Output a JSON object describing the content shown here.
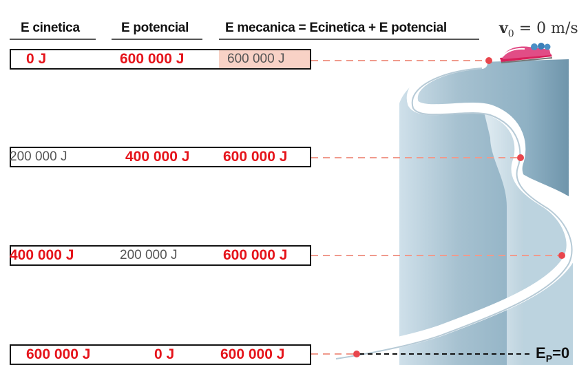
{
  "headers": {
    "kinetic": "E cinetica",
    "potential": "E potencial",
    "mechanical": "E mecanica = Ecinetica + E potencial"
  },
  "velocity": {
    "symbol": "v",
    "subscript": "0",
    "rest": " = 0 m/s"
  },
  "ground_label": {
    "main": "E",
    "subscript": "P",
    "rest": "=0"
  },
  "rows": [
    {
      "kinetic": "0 J",
      "potential": "600 000 J",
      "mechanical": "600 000 J"
    },
    {
      "kinetic": "200 000 J",
      "potential": "400 000 J",
      "mechanical": "600 000 J"
    },
    {
      "kinetic": "400 000 J",
      "potential": "200 000 J",
      "mechanical": "600 000 J"
    },
    {
      "kinetic": "600 000 J",
      "potential": "0 J",
      "mechanical": "600 000 J"
    }
  ],
  "colors": {
    "value_red": "#e5141b",
    "dashed_line": "#f09a8c",
    "marker": "#e8464d",
    "highlight": "#f8d2c6",
    "track": "#a9c3d1"
  },
  "icons": [
    "bobsled-icon"
  ]
}
